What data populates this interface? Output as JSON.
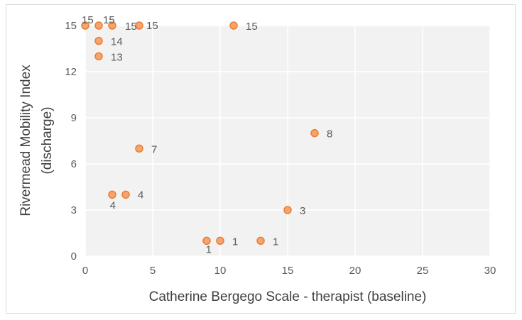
{
  "chart_data": {
    "type": "scatter",
    "title": "",
    "xlabel": "Catherine Bergego Scale - therapist (baseline)",
    "ylabel_line1": "Rivermead Mobility Index",
    "ylabel_line2": "(discharge)",
    "xlim": [
      0,
      30
    ],
    "ylim": [
      0,
      15
    ],
    "x_ticks": [
      "0",
      "5",
      "10",
      "15",
      "20",
      "25",
      "30"
    ],
    "y_ticks": [
      "0",
      "3",
      "6",
      "9",
      "12",
      "15"
    ],
    "grid": true,
    "legend": "none",
    "marker_color": "#f4a46f",
    "marker_edge_color": "#ed7d31",
    "points": [
      {
        "x": 0,
        "y": 15,
        "label": "15"
      },
      {
        "x": 1,
        "y": 15,
        "label": "15"
      },
      {
        "x": 2,
        "y": 15,
        "label": "15"
      },
      {
        "x": 4,
        "y": 15,
        "label": "15"
      },
      {
        "x": 11,
        "y": 15,
        "label": "15"
      },
      {
        "x": 1,
        "y": 14,
        "label": "14"
      },
      {
        "x": 1,
        "y": 13,
        "label": "13"
      },
      {
        "x": 17,
        "y": 8,
        "label": "8"
      },
      {
        "x": 4,
        "y": 7,
        "label": "7"
      },
      {
        "x": 2,
        "y": 4,
        "label": "4"
      },
      {
        "x": 3,
        "y": 4,
        "label": "4"
      },
      {
        "x": 15,
        "y": 3,
        "label": "3"
      },
      {
        "x": 9,
        "y": 1,
        "label": "1"
      },
      {
        "x": 10,
        "y": 1,
        "label": "1"
      },
      {
        "x": 13,
        "y": 1,
        "label": "1"
      }
    ]
  }
}
